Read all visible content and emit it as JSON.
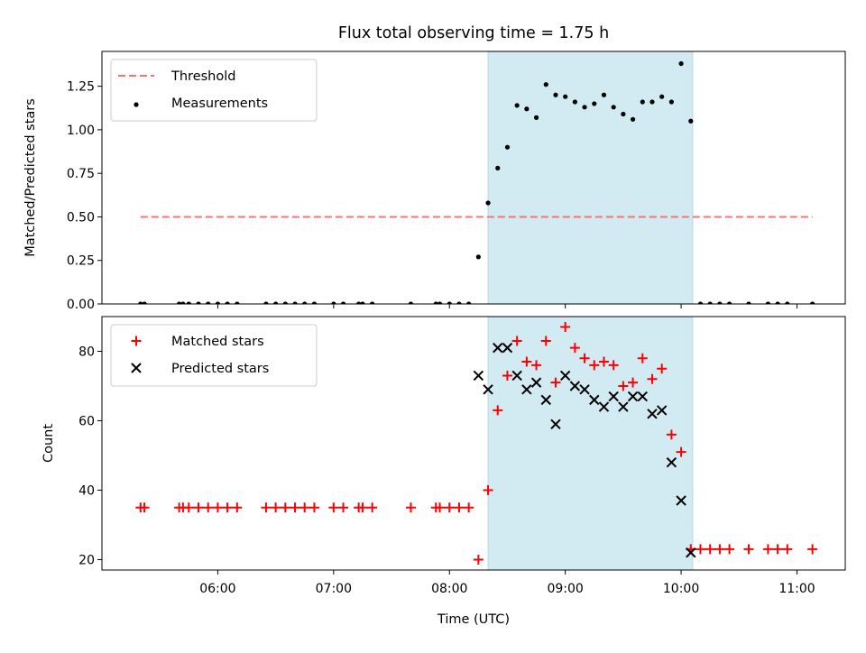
{
  "figure": {
    "title": "Flux total observing time = 1.75 h",
    "xlabel": "Time (UTC)",
    "xticks": [
      "06:00",
      "07:00",
      "08:00",
      "09:00",
      "10:00",
      "11:00"
    ]
  },
  "chart_data": [
    {
      "type": "scatter",
      "title": "Flux total observing time = 1.75 h",
      "xlabel": "",
      "ylabel": "Matched/Predicted stars",
      "xlim": [
        "05:00",
        "11:25"
      ],
      "ylim": [
        0,
        1.45
      ],
      "yticks": [
        "0.00",
        "0.25",
        "0.50",
        "0.75",
        "1.00",
        "1.25"
      ],
      "legend": "upper-left",
      "shaded_region": {
        "start": "08:20",
        "end": "10:06",
        "color": "#add8e6"
      },
      "series": [
        {
          "name": "Threshold",
          "kind": "dashed-line",
          "color": "#ff7070",
          "x": [
            "05:20",
            "11:08"
          ],
          "y": [
            0.5,
            0.5
          ]
        },
        {
          "name": "Measurements",
          "kind": "points",
          "color": "#000000",
          "x": [
            "05:20",
            "05:22",
            "05:40",
            "05:42",
            "05:45",
            "05:50",
            "05:55",
            "06:00",
            "06:05",
            "06:10",
            "06:25",
            "06:30",
            "06:35",
            "06:40",
            "06:45",
            "06:50",
            "07:00",
            "07:05",
            "07:13",
            "07:15",
            "07:20",
            "07:40",
            "07:53",
            "07:55",
            "08:00",
            "08:05",
            "08:10",
            "08:15",
            "08:20",
            "08:25",
            "08:30",
            "08:35",
            "08:40",
            "08:45",
            "08:50",
            "08:55",
            "09:00",
            "09:05",
            "09:10",
            "09:15",
            "09:20",
            "09:25",
            "09:30",
            "09:35",
            "09:40",
            "09:45",
            "09:50",
            "09:55",
            "10:00",
            "10:05",
            "10:10",
            "10:15",
            "10:20",
            "10:25",
            "10:35",
            "10:45",
            "10:50",
            "10:55",
            "11:08"
          ],
          "y": [
            0,
            0,
            0,
            0,
            0,
            0,
            0,
            0,
            0,
            0,
            0,
            0,
            0,
            0,
            0,
            0,
            0,
            0,
            0,
            0,
            0,
            0,
            0,
            0,
            0,
            0,
            0,
            0.27,
            0.58,
            0.78,
            0.9,
            1.14,
            1.12,
            1.07,
            1.26,
            1.2,
            1.19,
            1.16,
            1.13,
            1.15,
            1.2,
            1.13,
            1.09,
            1.06,
            1.16,
            1.16,
            1.19,
            1.16,
            1.38,
            1.05,
            0,
            0,
            0,
            0,
            0,
            0,
            0,
            0,
            0
          ]
        }
      ]
    },
    {
      "type": "scatter",
      "title": "",
      "xlabel": "Time (UTC)",
      "ylabel": "Count",
      "xlim": [
        "05:00",
        "11:25"
      ],
      "ylim": [
        17,
        90
      ],
      "yticks": [
        "20",
        "40",
        "60",
        "80"
      ],
      "legend": "upper-left",
      "shaded_region": {
        "start": "08:20",
        "end": "10:06",
        "color": "#add8e6"
      },
      "series": [
        {
          "name": "Matched stars",
          "marker": "plus",
          "color": "#ff0000",
          "x": [
            "05:20",
            "05:22",
            "05:40",
            "05:42",
            "05:45",
            "05:50",
            "05:55",
            "06:00",
            "06:05",
            "06:10",
            "06:25",
            "06:30",
            "06:35",
            "06:40",
            "06:45",
            "06:50",
            "07:00",
            "07:05",
            "07:13",
            "07:15",
            "07:20",
            "07:40",
            "07:53",
            "07:55",
            "08:00",
            "08:05",
            "08:10",
            "08:15",
            "08:20",
            "08:25",
            "08:30",
            "08:35",
            "08:40",
            "08:45",
            "08:50",
            "08:55",
            "09:00",
            "09:05",
            "09:10",
            "09:15",
            "09:20",
            "09:25",
            "09:30",
            "09:35",
            "09:40",
            "09:45",
            "09:50",
            "09:55",
            "10:00",
            "10:05",
            "10:10",
            "10:15",
            "10:20",
            "10:25",
            "10:35",
            "10:45",
            "10:50",
            "10:55",
            "11:08"
          ],
          "y": [
            35,
            35,
            35,
            35,
            35,
            35,
            35,
            35,
            35,
            35,
            35,
            35,
            35,
            35,
            35,
            35,
            35,
            35,
            35,
            35,
            35,
            35,
            35,
            35,
            35,
            35,
            35,
            20,
            40,
            63,
            73,
            83,
            77,
            76,
            83,
            71,
            87,
            81,
            78,
            76,
            77,
            76,
            70,
            71,
            78,
            72,
            75,
            56,
            51,
            23,
            23,
            23,
            23,
            23,
            23,
            23,
            23,
            23,
            23
          ]
        },
        {
          "name": "Predicted stars",
          "marker": "x",
          "color": "#000000",
          "x": [
            "08:15",
            "08:20",
            "08:25",
            "08:30",
            "08:35",
            "08:40",
            "08:45",
            "08:50",
            "08:55",
            "09:00",
            "09:05",
            "09:10",
            "09:15",
            "09:20",
            "09:25",
            "09:30",
            "09:35",
            "09:40",
            "09:45",
            "09:50",
            "09:55",
            "10:00",
            "10:05"
          ],
          "y": [
            73,
            69,
            81,
            81,
            73,
            69,
            71,
            66,
            59,
            73,
            70,
            69,
            66,
            64,
            67,
            64,
            67,
            67,
            62,
            63,
            48,
            37,
            22
          ]
        }
      ]
    }
  ]
}
